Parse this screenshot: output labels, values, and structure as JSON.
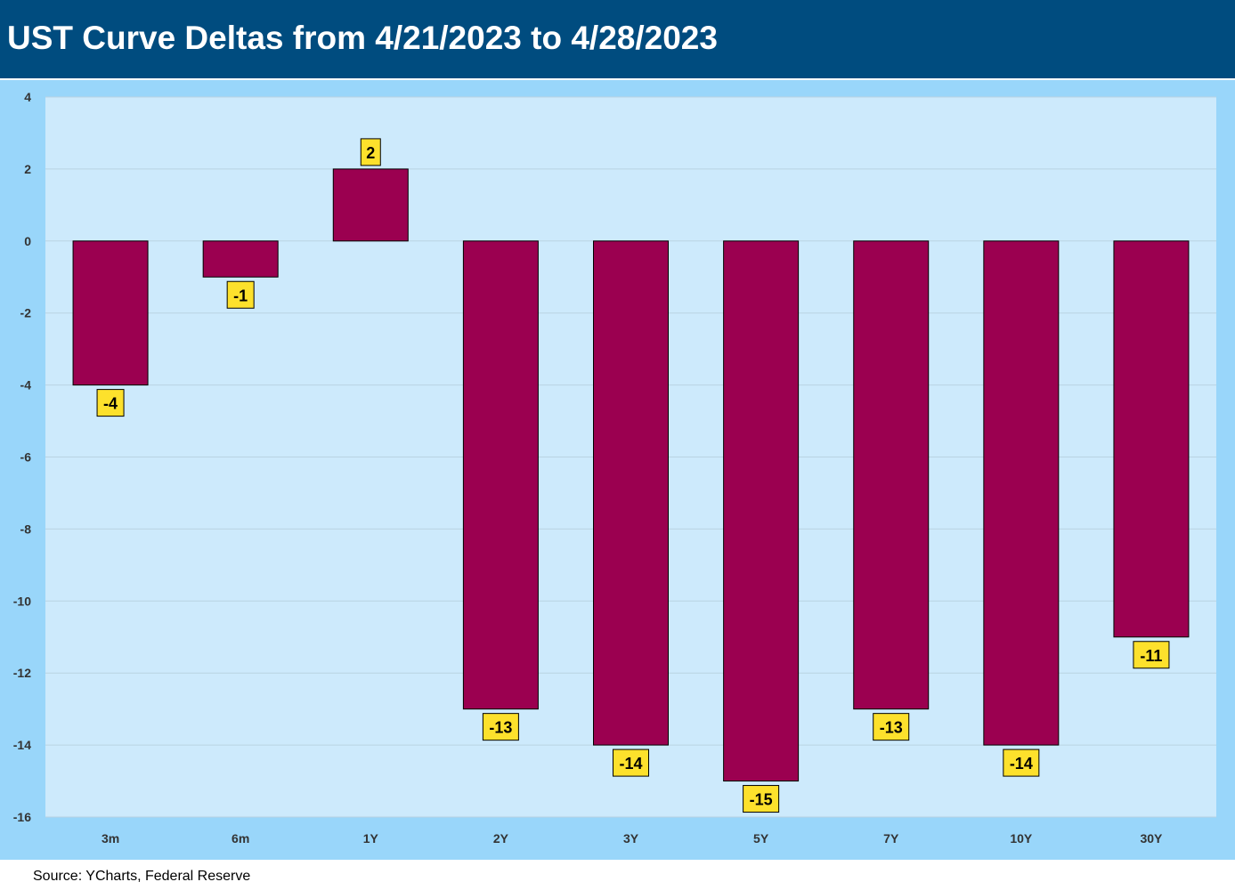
{
  "header": {
    "title": "UST Curve Deltas from 4/21/2023 to 4/28/2023"
  },
  "footer": {
    "source": "Source: YCharts, Federal Reserve"
  },
  "colors": {
    "header_bg": "#004c7f",
    "chart_bg": "#99d6fa",
    "plot_bg": "#cdeafc",
    "bar": "#9b0050",
    "data_label_bg": "#fde12c"
  },
  "chart_data": {
    "type": "bar",
    "title": "UST Curve Deltas from 4/21/2023 to 4/28/2023",
    "categories": [
      "3m",
      "6m",
      "1Y",
      "2Y",
      "3Y",
      "5Y",
      "7Y",
      "10Y",
      "30Y"
    ],
    "values": [
      -4,
      -1,
      2,
      -13,
      -14,
      -15,
      -13,
      -14,
      -11
    ],
    "data_labels": [
      "-4",
      "-1",
      "2",
      "-13",
      "-14",
      "-15",
      "-13",
      "-14",
      "-11"
    ],
    "ylim": [
      -16,
      4
    ],
    "yticks": [
      4,
      2,
      0,
      -2,
      -4,
      -6,
      -8,
      -10,
      -12,
      -14,
      -16
    ],
    "xlabel": "",
    "ylabel": "",
    "grid": true,
    "legend": "none"
  }
}
